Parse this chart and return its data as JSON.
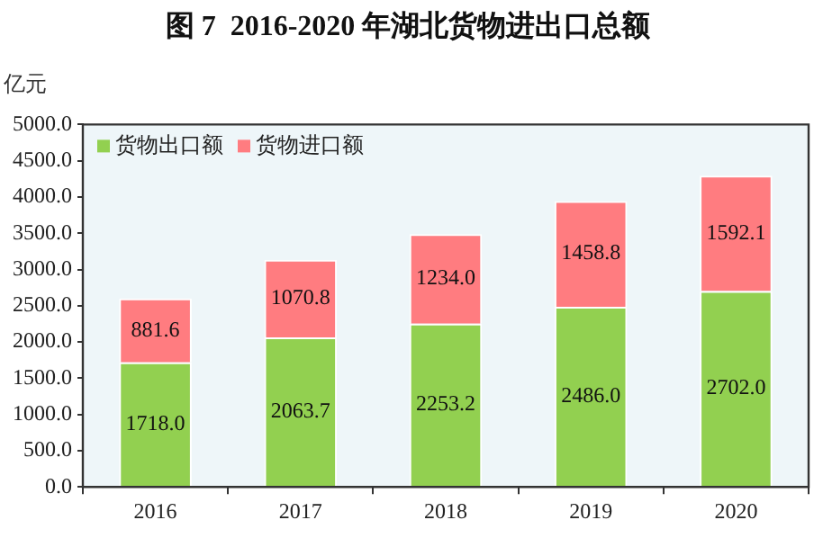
{
  "chart_data": {
    "type": "bar",
    "title": "图 7  2016-2020 年湖北货物进出口总额",
    "ylabel": "亿元",
    "categories": [
      "2016",
      "2017",
      "2018",
      "2019",
      "2020"
    ],
    "series": [
      {
        "name": "货物出口额",
        "color": "#92d050",
        "values": [
          1718,
          2063.7,
          2253.2,
          2486,
          2702
        ],
        "value_labels": [
          "1718.0",
          "2063.7",
          "2253.2",
          "2486.0",
          "2702.0"
        ]
      },
      {
        "name": "货物进口额",
        "color": "#ff7c80",
        "values": [
          881.6,
          1070.8,
          1234,
          1458.8,
          1592.1
        ],
        "value_labels": [
          "881.6",
          "1070.8",
          "1234.0",
          "1458.8",
          "1592.1"
        ]
      }
    ],
    "stacked": true,
    "legend": "top left",
    "grid": false,
    "ylim": [
      0,
      5000
    ],
    "yticks": [
      {
        "value": 0,
        "label": "0.0"
      },
      {
        "value": 500,
        "label": "500.0"
      },
      {
        "value": 1000,
        "label": "1000.0"
      },
      {
        "value": 1500,
        "label": "1500.0"
      },
      {
        "value": 2000,
        "label": "2000.0"
      },
      {
        "value": 2500,
        "label": "2500.0"
      },
      {
        "value": 3000,
        "label": "3000.0"
      },
      {
        "value": 3500,
        "label": "3500.0"
      },
      {
        "value": 4000,
        "label": "4000.0"
      },
      {
        "value": 4500,
        "label": "4500.0"
      },
      {
        "value": 5000,
        "label": "5000.0"
      }
    ]
  }
}
